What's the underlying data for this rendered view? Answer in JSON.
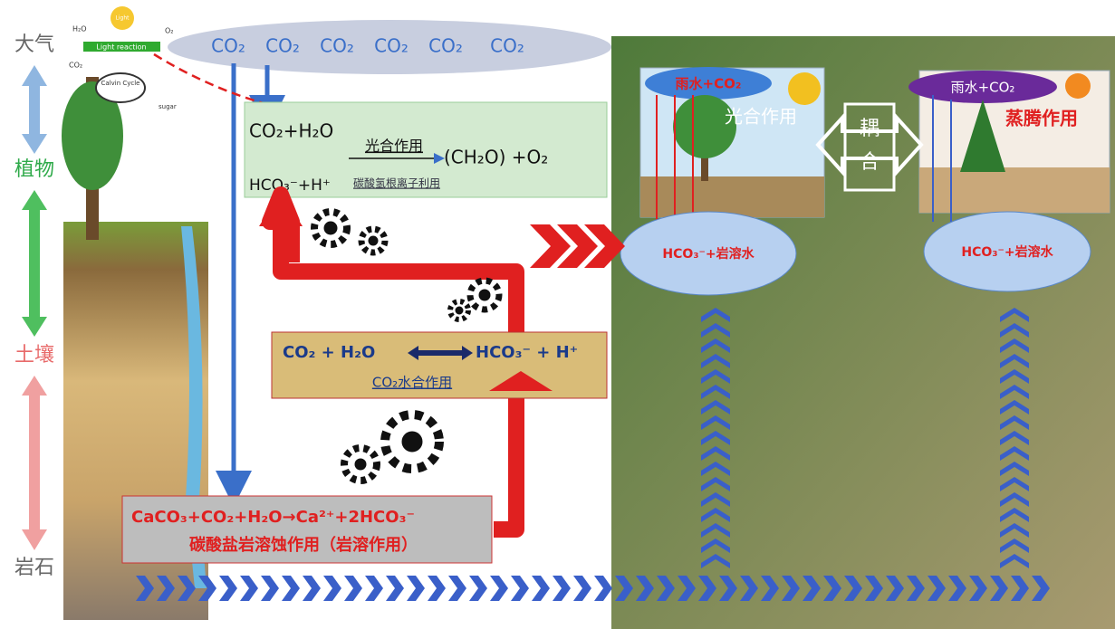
{
  "layers": [
    "大气",
    "植物",
    "土壤",
    "岩石"
  ],
  "calvin_inset": {
    "h2o": "H₂O",
    "light": "Light",
    "o2": "O₂",
    "light_reaction": "Light reaction",
    "co2": "CO₂",
    "calvin_cycle": "Calvin Cycle",
    "sugar": "sugar"
  },
  "atmosphere_co2": [
    "CO₂",
    "CO₂",
    "CO₂",
    "CO₂",
    "CO₂",
    "CO₂"
  ],
  "light_energy": "hυ",
  "photosynthesis_box": {
    "reactants": "CO₂+H₂O",
    "process": "光合作用",
    "products": "(CH₂O)  +O₂",
    "bicarbonate": "HCO₃⁻+H⁺",
    "bicarbonate_use": "碳酸氢根离子利用"
  },
  "hydration_box": {
    "left": "CO₂  + H₂O",
    "right": "HCO₃⁻ +  H⁺",
    "process": "CO₂水合作用"
  },
  "dissolution_box": {
    "equation": "CaCO₃+CO₂+H₂O→Ca²⁺+2HCO₃⁻",
    "process": "碳酸盐岩溶蚀作用（岩溶作用）"
  },
  "photo_panel": {
    "left_rain": "雨水+CO₂",
    "left_process": "光合作用",
    "coupling": [
      "耦",
      "合"
    ],
    "right_rain": "雨水+CO₂",
    "right_process": "蒸腾作用",
    "left_water": "HCO₃⁻+岩溶水",
    "right_water": "HCO₃⁻+岩溶水"
  }
}
